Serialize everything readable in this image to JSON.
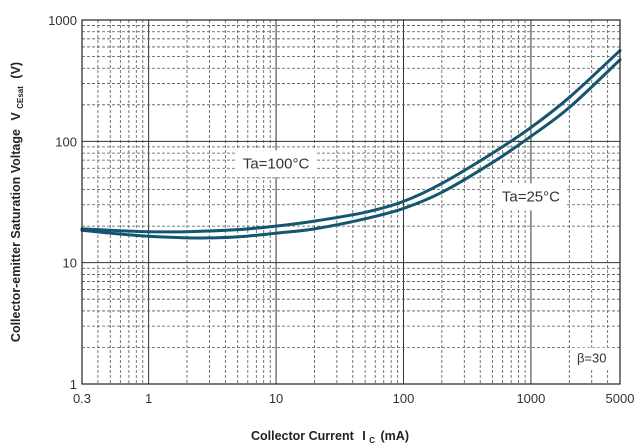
{
  "chart_data": {
    "type": "line",
    "title": "",
    "xlabel": "Collector Current",
    "xlabel_symbol": "I",
    "xlabel_subscript": "C",
    "xlabel_unit": "(mA)",
    "ylabel": "Collector-emitter Saturation Voltage",
    "ylabel_symbol": "V",
    "ylabel_subscript": "CEsat",
    "ylabel_unit": "(V)",
    "xscale": "log",
    "yscale": "log",
    "xlim": [
      0.3,
      5000
    ],
    "ylim": [
      1,
      1000
    ],
    "grid": true,
    "x_ticks": [
      "0.3",
      "1",
      "10",
      "100",
      "1000",
      "5000"
    ],
    "y_ticks": [
      "1",
      "10",
      "100",
      "1000"
    ],
    "series": [
      {
        "name": "Ta=100°C",
        "color": "#14566f",
        "x": [
          0.3,
          0.5,
          1,
          2,
          5,
          10,
          20,
          50,
          100,
          200,
          500,
          1000,
          2000,
          5000
        ],
        "y": [
          19,
          18.5,
          18,
          18,
          18.7,
          20,
          22,
          26,
          32,
          45,
          80,
          130,
          230,
          560
        ]
      },
      {
        "name": "Ta=25°C",
        "color": "#14566f",
        "x": [
          0.3,
          0.5,
          1,
          2,
          3,
          5,
          10,
          20,
          50,
          100,
          200,
          500,
          1000,
          2000,
          5000
        ],
        "y": [
          18.5,
          17.5,
          16.5,
          16,
          16,
          16.3,
          17.5,
          19,
          23,
          28,
          38,
          67,
          110,
          190,
          470
        ]
      }
    ],
    "annotations": [
      {
        "text": "Ta=100°C",
        "x": 10,
        "y": 60
      },
      {
        "text": "Ta=25°C",
        "x": 1000,
        "y": 32
      },
      {
        "text": "β=30",
        "x": 3000,
        "y": 1.5
      }
    ]
  }
}
